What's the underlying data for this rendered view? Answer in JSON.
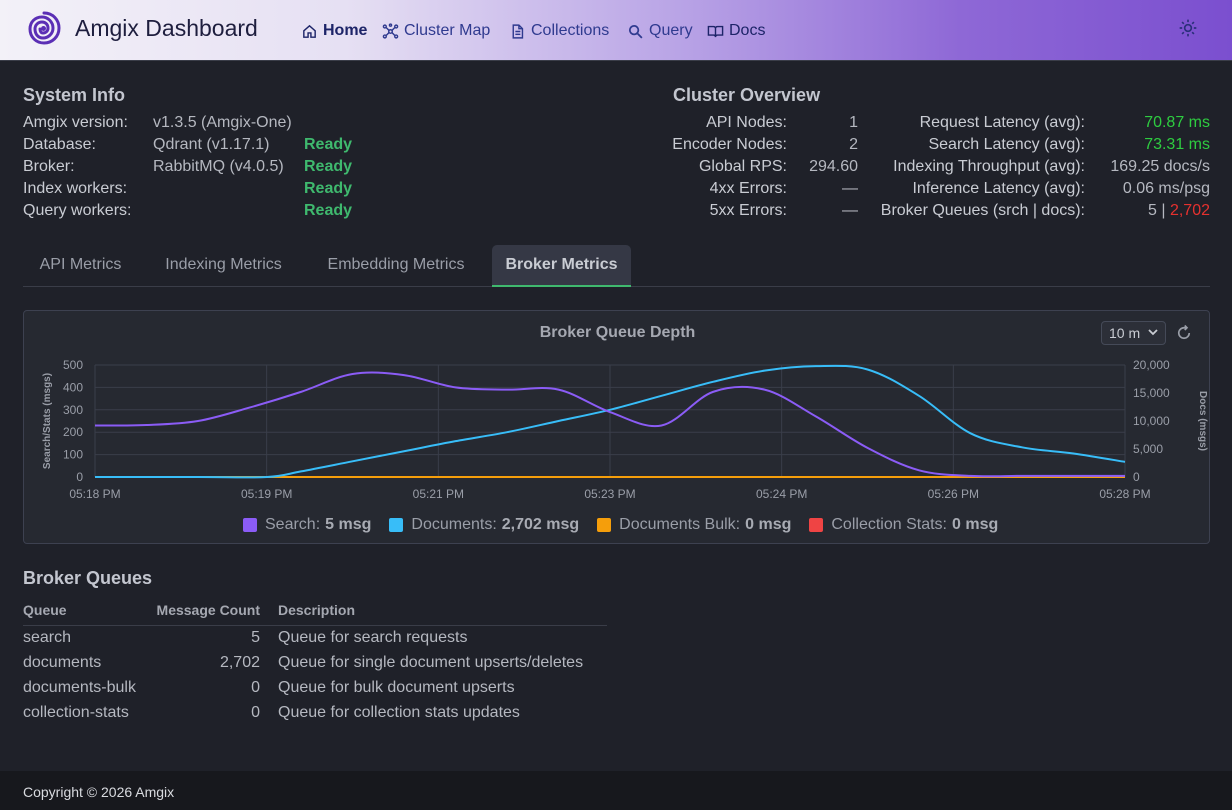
{
  "header": {
    "brand": "Amgix Dashboard",
    "nav": [
      {
        "label": "Home",
        "icon": "home-icon"
      },
      {
        "label": "Cluster Map",
        "icon": "cluster-icon"
      },
      {
        "label": "Collections",
        "icon": "document-icon"
      },
      {
        "label": "Query",
        "icon": "search-icon"
      },
      {
        "label": "Docs",
        "icon": "book-icon"
      }
    ],
    "theme_icon": "sun-icon"
  },
  "system_info": {
    "title": "System Info",
    "rows": [
      {
        "label": "Amgix version:",
        "value": "v1.3.5 (Amgix-One)",
        "status": ""
      },
      {
        "label": "Database:",
        "value": "Qdrant (v1.17.1)",
        "status": "Ready"
      },
      {
        "label": "Broker:",
        "value": "RabbitMQ (v4.0.5)",
        "status": "Ready"
      },
      {
        "label": "Index workers:",
        "value": "",
        "status": "Ready"
      },
      {
        "label": "Query workers:",
        "value": "",
        "status": "Ready"
      }
    ]
  },
  "cluster_overview": {
    "title": "Cluster Overview",
    "left": [
      {
        "label": "API Nodes:",
        "value": "1"
      },
      {
        "label": "Encoder Nodes:",
        "value": "2"
      },
      {
        "label": "Global RPS:",
        "value": "294.60"
      },
      {
        "label": "4xx Errors:",
        "value": "—"
      },
      {
        "label": "5xx Errors:",
        "value": "—"
      }
    ],
    "right": [
      {
        "label": "Request Latency (avg):",
        "value": "70.87 ms"
      },
      {
        "label": "Search Latency (avg):",
        "value": "73.31 ms"
      },
      {
        "label": "Indexing Throughput (avg):",
        "value": "169.25 docs/s"
      },
      {
        "label": "Inference Latency (avg):",
        "value": "0.06 ms/psg"
      },
      {
        "label": "Broker Queues (srch | docs):",
        "value_a": "5",
        "sep": " | ",
        "value_b": "2,702"
      }
    ]
  },
  "tabs": [
    "API Metrics",
    "Indexing Metrics",
    "Embedding Metrics",
    "Broker Metrics"
  ],
  "active_tab": "Broker Metrics",
  "chart_controls": {
    "range": "10 m",
    "refresh_icon": "refresh-icon"
  },
  "chart_data": {
    "type": "line",
    "title": "Broker Queue Depth",
    "ylabel": "Search/Stats (msgs)",
    "y2label": "Docs (msgs)",
    "ylim": [
      0,
      500
    ],
    "y2lim": [
      0,
      20000
    ],
    "y_ticks": [
      "500",
      "400",
      "300",
      "200",
      "100",
      "0"
    ],
    "y2_ticks": [
      "20,000",
      "15,000",
      "10,000",
      "5,000",
      "0"
    ],
    "x_ticks": [
      "05:18 PM",
      "05:19 PM",
      "05:21 PM",
      "05:23 PM",
      "05:24 PM",
      "05:26 PM",
      "05:28 PM"
    ],
    "x_range_minutes": [
      0,
      10
    ],
    "series": [
      {
        "name": "Search",
        "axis": "left",
        "color": "#8b5cf6",
        "x": [
          0,
          0.5,
          1,
          1.5,
          2,
          2.5,
          3,
          3.5,
          4,
          4.5,
          5,
          5.5,
          6,
          6.5,
          7,
          7.5,
          8,
          8.5,
          9,
          9.5,
          10
        ],
        "values": [
          230,
          232,
          250,
          310,
          380,
          460,
          455,
          400,
          390,
          390,
          290,
          230,
          380,
          390,
          270,
          130,
          30,
          5,
          5,
          5,
          5
        ],
        "legend_value": "5 msg"
      },
      {
        "name": "Documents",
        "axis": "right",
        "color": "#38bdf8",
        "x": [
          0,
          1,
          1.67,
          2,
          2.5,
          3,
          3.5,
          4,
          4.5,
          5,
          5.5,
          6,
          6.5,
          7,
          7.5,
          8,
          8.5,
          9,
          9.5,
          10
        ],
        "values": [
          0,
          0,
          0,
          1000,
          2800,
          4600,
          6400,
          8000,
          10000,
          12000,
          14500,
          17000,
          19000,
          19800,
          19200,
          14500,
          7800,
          5300,
          4200,
          2702
        ],
        "legend_value": "2,702 msg"
      },
      {
        "name": "Documents Bulk",
        "axis": "left",
        "color": "#f59e0b",
        "x": [
          0,
          10
        ],
        "values": [
          0,
          0
        ],
        "legend_value": "0 msg"
      },
      {
        "name": "Collection Stats",
        "axis": "left",
        "color": "#ef4444",
        "x": [
          0,
          10
        ],
        "values": [
          0,
          0
        ],
        "legend_value": "0 msg"
      }
    ],
    "grid": true,
    "legend_position": "bottom"
  },
  "broker_queues": {
    "title": "Broker Queues",
    "columns": [
      "Queue",
      "Message Count",
      "Description"
    ],
    "rows": [
      {
        "queue": "search",
        "count": "5",
        "desc": "Queue for search requests"
      },
      {
        "queue": "documents",
        "count": "2,702",
        "desc": "Queue for single document upserts/deletes"
      },
      {
        "queue": "documents-bulk",
        "count": "0",
        "desc": "Queue for bulk document upserts"
      },
      {
        "queue": "collection-stats",
        "count": "0",
        "desc": "Queue for collection stats updates"
      }
    ]
  },
  "footer": {
    "text": "Copyright © 2026 Amgix"
  }
}
